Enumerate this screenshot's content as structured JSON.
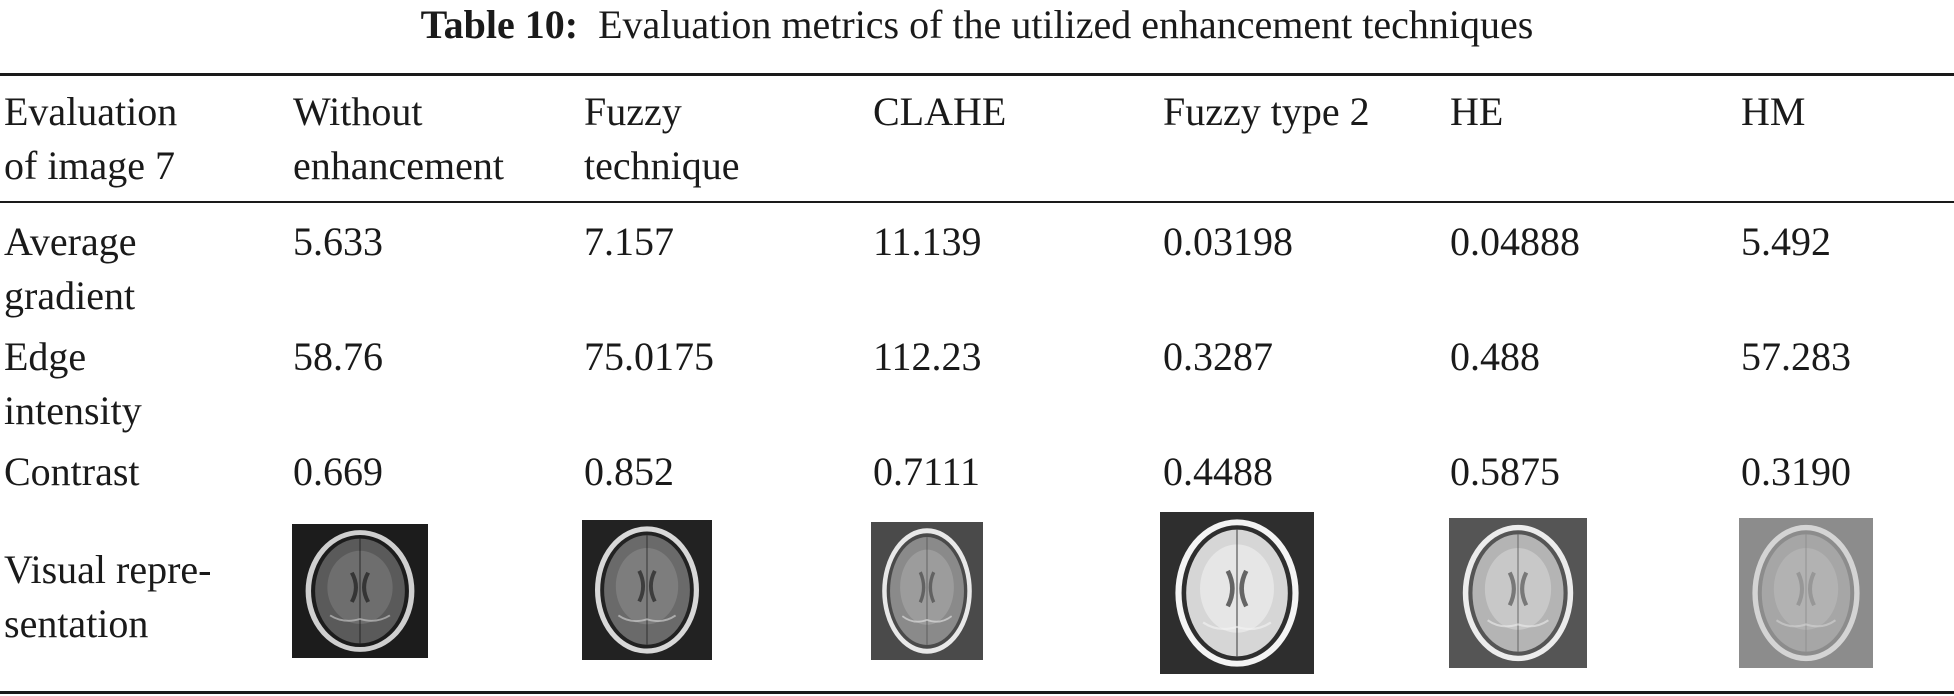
{
  "caption": {
    "label": "Table 10:",
    "text": "Evaluation metrics of the utilized enhancement techniques"
  },
  "header": {
    "row_label": [
      "Evaluation",
      "of image 7"
    ],
    "columns": [
      [
        "Without",
        "enhancement"
      ],
      [
        "Fuzzy",
        "technique"
      ],
      [
        "CLAHE",
        ""
      ],
      [
        "Fuzzy type 2",
        ""
      ],
      [
        "HE",
        ""
      ],
      [
        "HM",
        ""
      ]
    ]
  },
  "rows": [
    {
      "label": [
        "Average",
        "gradient"
      ],
      "values": [
        "5.633",
        "7.157",
        "11.139",
        "0.03198",
        "0.04888",
        "5.492"
      ]
    },
    {
      "label": [
        "Edge",
        "intensity"
      ],
      "values": [
        "58.76",
        "75.0175",
        "112.23",
        "0.3287",
        "0.488",
        "57.283"
      ]
    },
    {
      "label": [
        "Contrast",
        ""
      ],
      "values": [
        "0.669",
        "0.852",
        "0.7111",
        "0.4488",
        "0.5875",
        "0.3190"
      ]
    }
  ],
  "visual_row": {
    "label": [
      "Visual repre-",
      "sentation"
    ],
    "images": [
      {
        "name": "without-enhancement",
        "bg": "#1c1c1c",
        "brain": "#5a5a5a",
        "inner": "#6e6e6e",
        "ring": "#cfcfcf"
      },
      {
        "name": "fuzzy-technique",
        "bg": "#222222",
        "brain": "#6a6a6a",
        "inner": "#7d7d7d",
        "ring": "#d8d8d8"
      },
      {
        "name": "clahe",
        "bg": "#4a4a4a",
        "brain": "#8a8a8a",
        "inner": "#9c9c9c",
        "ring": "#e8e8e8"
      },
      {
        "name": "fuzzy-type-2",
        "bg": "#2e2e2e",
        "brain": "#d6d6d6",
        "inner": "#e6e6e6",
        "ring": "#f4f4f4"
      },
      {
        "name": "he",
        "bg": "#555555",
        "brain": "#b4b4b4",
        "inner": "#c8c8c8",
        "ring": "#ececec"
      },
      {
        "name": "hm",
        "bg": "#8c8c8c",
        "brain": "#a6a6a6",
        "inner": "#b2b2b2",
        "ring": "#d4d4d4"
      }
    ]
  }
}
